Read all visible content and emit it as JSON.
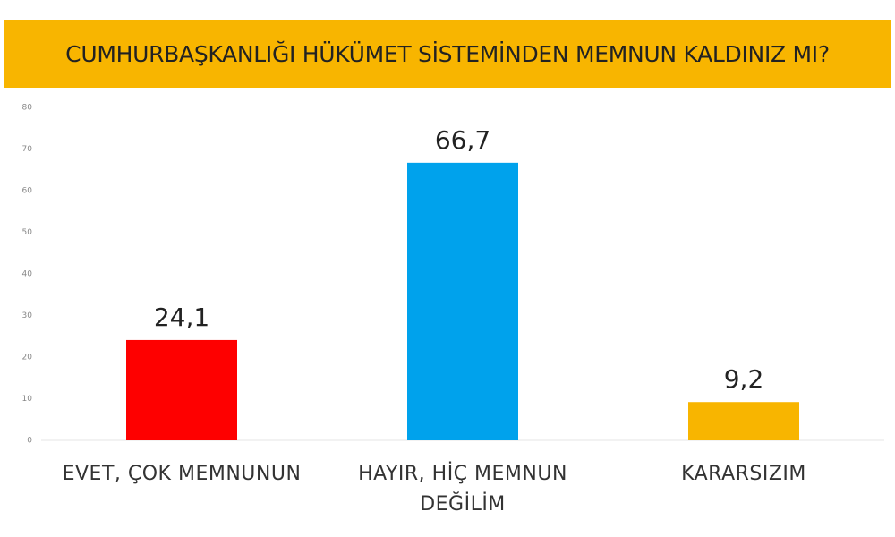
{
  "chart_data": {
    "type": "bar",
    "title": "CUMHURBAŞKANLIĞI HÜKÜMET SİSTEMİNDEN MEMNUN KALDINIZ MI?",
    "categories": [
      "EVET, ÇOK MEMNUNUN",
      "HAYIR, HİÇ MEMNUN DEĞİLİM",
      "KARARSIZIM"
    ],
    "values": [
      24.1,
      66.7,
      9.2
    ],
    "value_labels": [
      "24,1",
      "66,7",
      "9,2"
    ],
    "colors": [
      "#fe0000",
      "#00a2ec",
      "#f8b500"
    ],
    "ylim": [
      0,
      80
    ],
    "yticks": [
      0,
      10,
      20,
      30,
      40,
      50,
      60,
      70,
      80
    ]
  }
}
